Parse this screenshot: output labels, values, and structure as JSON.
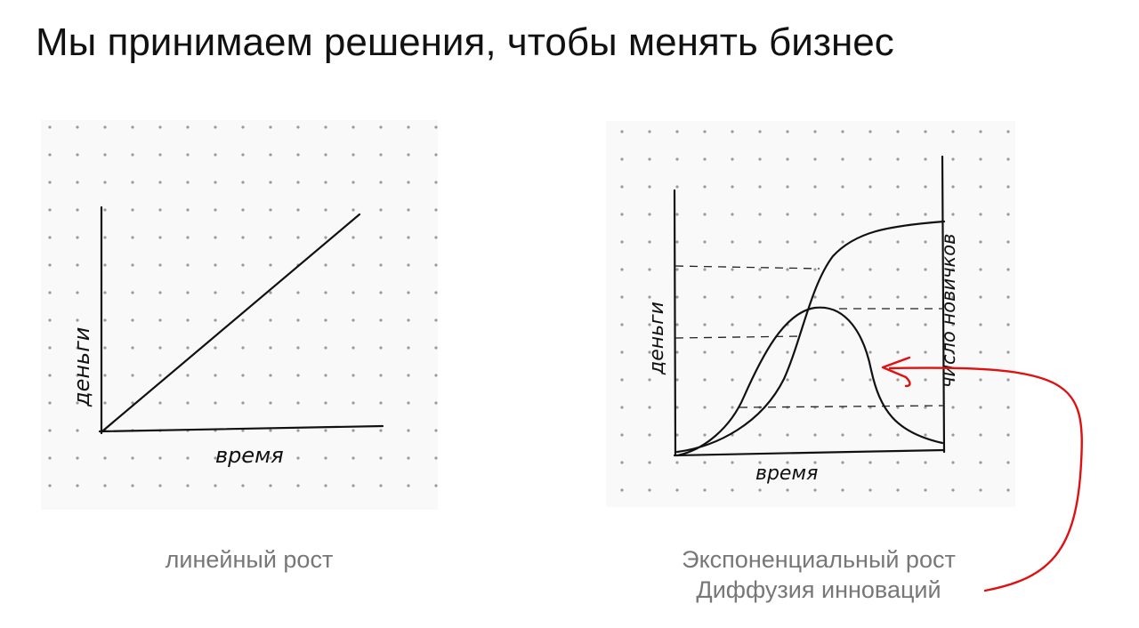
{
  "title": "Мы принимаем решения, чтобы менять бизнес",
  "left_sketch": {
    "y_axis_label": "деньги",
    "x_axis_label": "время",
    "caption": "линейный рост"
  },
  "right_sketch": {
    "y_axis_left_label": "деньги",
    "y_axis_right_label": "число новичков",
    "x_axis_label": "время",
    "caption_line1": "Экспоненциальный рост",
    "caption_line2": "Диффузия инноваций"
  },
  "colors": {
    "pen": "#111111",
    "annotation_arrow": "#e01010",
    "caption": "#777777",
    "paper": "#f9f9f9",
    "dots": "#9a9a9a"
  }
}
